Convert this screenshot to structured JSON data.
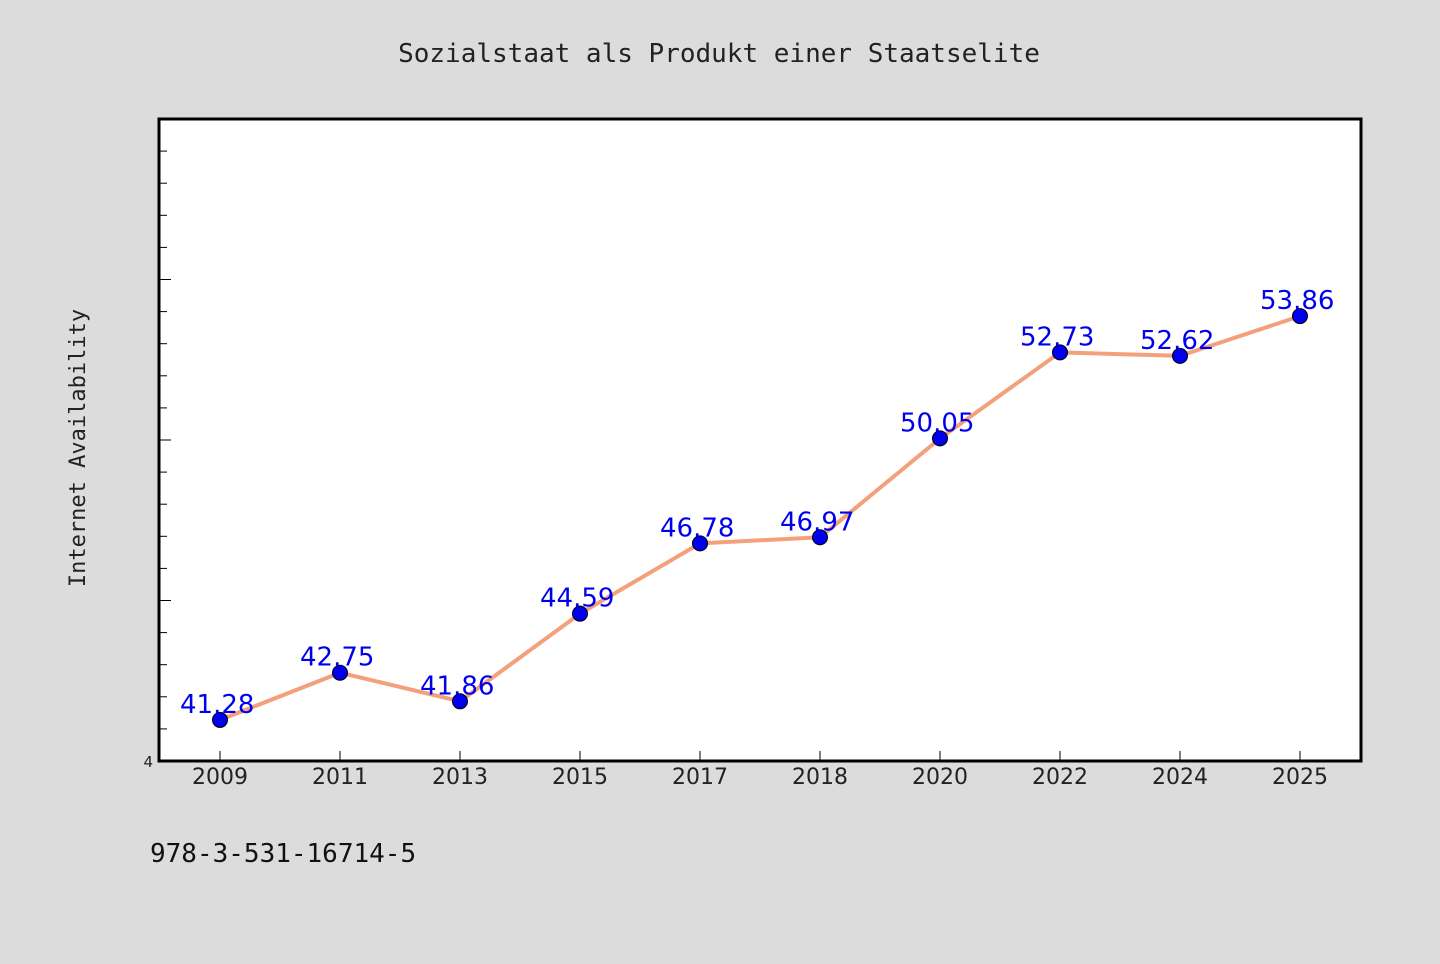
{
  "chart_data": {
    "type": "line",
    "title": "Sozialstaat als Produkt einer Staatselite",
    "xlabel": "",
    "ylabel": "Internet Availability",
    "categories": [
      "2009",
      "2011",
      "2013",
      "2015",
      "2017",
      "2018",
      "2020",
      "2022",
      "2024",
      "2025"
    ],
    "series": [
      {
        "values": [
          41.28,
          42.75,
          41.86,
          44.59,
          46.78,
          46.97,
          50.05,
          52.73,
          52.62,
          53.86
        ],
        "labels": [
          "41.28",
          "42.75",
          "41.86",
          "44.59",
          "46.78",
          "46.97",
          "50.05",
          "52.73",
          "52.62",
          "53.86"
        ],
        "line_color": "#f4a07a",
        "marker_color": "#0000ee"
      }
    ],
    "y_tick_label": "4",
    "ylim": [
      40,
      60
    ],
    "grid": false,
    "legend": "none"
  },
  "footer": {
    "isbn": "978-3-531-16714-5"
  },
  "colors": {
    "background": "#dcdcdc",
    "plot_background": "#ffffff",
    "axis": "#000000"
  }
}
